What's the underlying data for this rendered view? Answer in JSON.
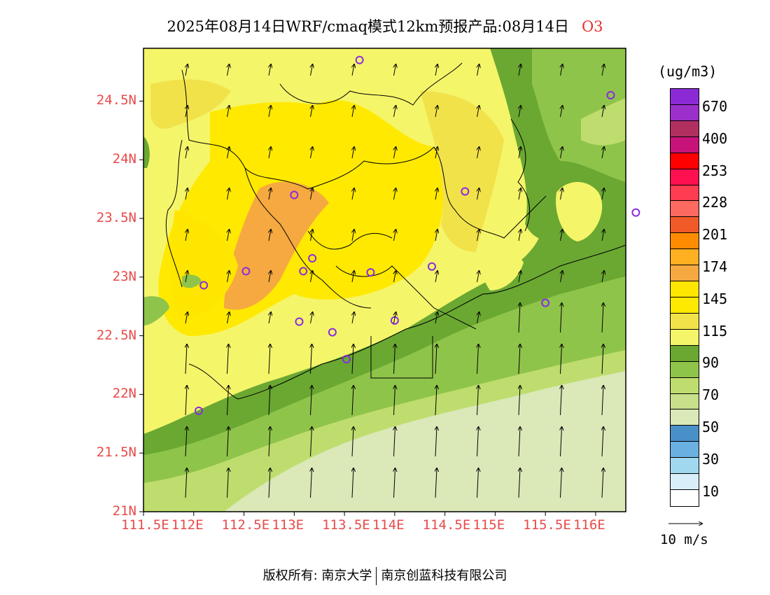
{
  "title": {
    "main": "2025年08月14日WRF/cmaq模式12km预报产品:08月14日",
    "pollutant": "O3"
  },
  "axes": {
    "y_labels": [
      "24.5N",
      "24N",
      "23.5N",
      "23N",
      "22.5N",
      "22N",
      "21.5N",
      "21N"
    ],
    "x_labels": [
      "111.5E",
      "112E",
      "112.5E",
      "113E",
      "113.5E",
      "114E",
      "114.5E",
      "115E",
      "115.5E",
      "116E"
    ],
    "lon_range": [
      111.5,
      116.3
    ],
    "lat_range": [
      21.0,
      24.95
    ]
  },
  "colorbar": {
    "unit": "(ug/m3)",
    "labels": [
      "670",
      "400",
      "253",
      "228",
      "201",
      "174",
      "145",
      "115",
      "90",
      "70",
      "50",
      "30",
      "10"
    ],
    "colors": [
      "#8c2bd6",
      "#9b2fc9",
      "#b03060",
      "#c8137a",
      "#ff0000",
      "#ff1050",
      "#ff3c50",
      "#ff6a60",
      "#f05a28",
      "#ff8c00",
      "#ffb020",
      "#f5a940",
      "#ffe600",
      "#ffe900",
      "#f2e24a",
      "#f5f56a",
      "#6aa832",
      "#8fc44a",
      "#bedd6e",
      "#c8e08a",
      "#dbe8b8",
      "#4a90c8",
      "#6ab0e0",
      "#a0d8f0",
      "#d8eef8",
      "#ffffff"
    ]
  },
  "wind_reference": "10 m/s",
  "footer": {
    "left": "版权所有: 南京大学",
    "right": "南京创蓝科技有限公司"
  },
  "stations": [
    {
      "lon": 113.65,
      "lat": 24.85
    },
    {
      "lon": 116.15,
      "lat": 24.55
    },
    {
      "lon": 113.0,
      "lat": 23.7
    },
    {
      "lon": 114.7,
      "lat": 23.73
    },
    {
      "lon": 116.4,
      "lat": 23.55
    },
    {
      "lon": 112.52,
      "lat": 23.05
    },
    {
      "lon": 113.09,
      "lat": 23.05
    },
    {
      "lon": 113.18,
      "lat": 23.16
    },
    {
      "lon": 113.76,
      "lat": 23.04
    },
    {
      "lon": 114.37,
      "lat": 23.09
    },
    {
      "lon": 112.1,
      "lat": 22.93
    },
    {
      "lon": 115.5,
      "lat": 22.78
    },
    {
      "lon": 113.05,
      "lat": 22.62
    },
    {
      "lon": 113.38,
      "lat": 22.53
    },
    {
      "lon": 114.0,
      "lat": 22.63
    },
    {
      "lon": 113.52,
      "lat": 22.3
    },
    {
      "lon": 112.05,
      "lat": 21.86
    }
  ]
}
